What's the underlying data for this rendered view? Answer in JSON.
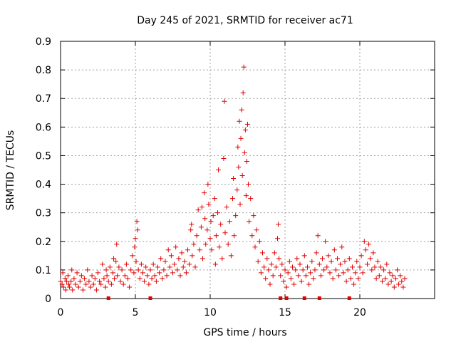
{
  "chart_data": {
    "type": "scatter",
    "title": "Day 245 of 2021, SRMTID for receiver ac71",
    "xlabel": "GPS time / hours",
    "ylabel": "SRMTID / TECUs",
    "xlim": [
      0,
      25
    ],
    "ylim": [
      0,
      0.9
    ],
    "x_ticks": [
      0,
      5,
      10,
      15,
      20
    ],
    "x_tick_labels": [
      "0",
      "5",
      "10",
      "15",
      "20"
    ],
    "y_ticks": [
      0,
      0.1,
      0.2,
      0.3,
      0.4,
      0.5,
      0.6,
      0.7,
      0.8,
      0.9
    ],
    "y_tick_labels": [
      "0",
      "0.1",
      "0.2",
      "0.3",
      "0.4",
      "0.5",
      "0.6",
      "0.7",
      "0.8",
      "0.9"
    ],
    "grid": true,
    "marker": "plus",
    "color": "#e00000",
    "series": [
      {
        "name": "SRMTID",
        "points": [
          [
            0.0,
            0.06
          ],
          [
            0.1,
            0.05
          ],
          [
            0.15,
            0.09
          ],
          [
            0.2,
            0.04
          ],
          [
            0.3,
            0.07
          ],
          [
            0.35,
            0.03
          ],
          [
            0.4,
            0.06
          ],
          [
            0.5,
            0.08
          ],
          [
            0.55,
            0.05
          ],
          [
            0.6,
            0.04
          ],
          [
            0.7,
            0.06
          ],
          [
            0.75,
            0.1
          ],
          [
            0.8,
            0.03
          ],
          [
            0.9,
            0.07
          ],
          [
            1.0,
            0.05
          ],
          [
            1.1,
            0.09
          ],
          [
            1.2,
            0.04
          ],
          [
            1.3,
            0.06
          ],
          [
            1.4,
            0.08
          ],
          [
            1.5,
            0.03
          ],
          [
            1.6,
            0.07
          ],
          [
            1.7,
            0.05
          ],
          [
            1.8,
            0.1
          ],
          [
            1.9,
            0.06
          ],
          [
            2.0,
            0.04
          ],
          [
            2.1,
            0.08
          ],
          [
            2.2,
            0.05
          ],
          [
            2.3,
            0.07
          ],
          [
            2.4,
            0.03
          ],
          [
            2.5,
            0.09
          ],
          [
            2.6,
            0.06
          ],
          [
            2.7,
            0.05
          ],
          [
            2.8,
            0.12
          ],
          [
            2.9,
            0.07
          ],
          [
            3.0,
            0.04
          ],
          [
            3.05,
            0.1
          ],
          [
            3.1,
            0.08
          ],
          [
            3.2,
            0.06
          ],
          [
            3.3,
            0.11
          ],
          [
            3.4,
            0.05
          ],
          [
            3.5,
            0.09
          ],
          [
            3.55,
            0.14
          ],
          [
            3.6,
            0.07
          ],
          [
            3.7,
            0.13
          ],
          [
            3.75,
            0.19
          ],
          [
            3.8,
            0.08
          ],
          [
            3.9,
            0.11
          ],
          [
            4.0,
            0.06
          ],
          [
            4.1,
            0.1
          ],
          [
            4.2,
            0.05
          ],
          [
            4.3,
            0.08
          ],
          [
            4.4,
            0.12
          ],
          [
            4.5,
            0.07
          ],
          [
            4.6,
            0.04
          ],
          [
            4.7,
            0.1
          ],
          [
            4.8,
            0.15
          ],
          [
            4.9,
            0.09
          ],
          [
            4.95,
            0.18
          ],
          [
            5.0,
            0.21
          ],
          [
            5.05,
            0.13
          ],
          [
            5.1,
            0.27
          ],
          [
            5.15,
            0.24
          ],
          [
            5.2,
            0.1
          ],
          [
            5.3,
            0.07
          ],
          [
            5.4,
            0.12
          ],
          [
            5.5,
            0.09
          ],
          [
            5.6,
            0.06
          ],
          [
            5.7,
            0.11
          ],
          [
            5.8,
            0.08
          ],
          [
            5.9,
            0.05
          ],
          [
            6.0,
            0.1
          ],
          [
            6.1,
            0.07
          ],
          [
            6.2,
            0.12
          ],
          [
            6.3,
            0.08
          ],
          [
            6.4,
            0.06
          ],
          [
            6.5,
            0.11
          ],
          [
            6.6,
            0.09
          ],
          [
            6.7,
            0.14
          ],
          [
            6.8,
            0.07
          ],
          [
            6.9,
            0.1
          ],
          [
            7.0,
            0.13
          ],
          [
            7.1,
            0.08
          ],
          [
            7.2,
            0.17
          ],
          [
            7.3,
            0.11
          ],
          [
            7.4,
            0.15
          ],
          [
            7.5,
            0.09
          ],
          [
            7.6,
            0.12
          ],
          [
            7.7,
            0.18
          ],
          [
            7.8,
            0.1
          ],
          [
            7.9,
            0.14
          ],
          [
            8.0,
            0.08
          ],
          [
            8.1,
            0.16
          ],
          [
            8.2,
            0.11
          ],
          [
            8.3,
            0.13
          ],
          [
            8.4,
            0.09
          ],
          [
            8.5,
            0.17
          ],
          [
            8.6,
            0.12
          ],
          [
            8.7,
            0.24
          ],
          [
            8.75,
            0.26
          ],
          [
            8.8,
            0.15
          ],
          [
            8.9,
            0.19
          ],
          [
            9.0,
            0.11
          ],
          [
            9.1,
            0.22
          ],
          [
            9.2,
            0.31
          ],
          [
            9.3,
            0.17
          ],
          [
            9.4,
            0.25
          ],
          [
            9.45,
            0.32
          ],
          [
            9.5,
            0.14
          ],
          [
            9.6,
            0.37
          ],
          [
            9.65,
            0.28
          ],
          [
            9.7,
            0.19
          ],
          [
            9.8,
            0.24
          ],
          [
            9.85,
            0.4
          ],
          [
            9.9,
            0.33
          ],
          [
            10.0,
            0.21
          ],
          [
            10.05,
            0.27
          ],
          [
            10.1,
            0.17
          ],
          [
            10.2,
            0.29
          ],
          [
            10.3,
            0.35
          ],
          [
            10.35,
            0.12
          ],
          [
            10.4,
            0.22
          ],
          [
            10.5,
            0.3
          ],
          [
            10.55,
            0.45
          ],
          [
            10.6,
            0.18
          ],
          [
            10.7,
            0.26
          ],
          [
            10.8,
            0.14
          ],
          [
            10.9,
            0.49
          ],
          [
            10.95,
            0.69
          ],
          [
            11.0,
            0.23
          ],
          [
            11.1,
            0.32
          ],
          [
            11.2,
            0.19
          ],
          [
            11.3,
            0.27
          ],
          [
            11.4,
            0.15
          ],
          [
            11.5,
            0.35
          ],
          [
            11.55,
            0.42
          ],
          [
            11.6,
            0.22
          ],
          [
            11.7,
            0.29
          ],
          [
            11.8,
            0.38
          ],
          [
            11.85,
            0.53
          ],
          [
            11.9,
            0.46
          ],
          [
            11.95,
            0.62
          ],
          [
            12.0,
            0.33
          ],
          [
            12.05,
            0.56
          ],
          [
            12.1,
            0.66
          ],
          [
            12.15,
            0.43
          ],
          [
            12.2,
            0.72
          ],
          [
            12.25,
            0.81
          ],
          [
            12.3,
            0.51
          ],
          [
            12.35,
            0.59
          ],
          [
            12.4,
            0.36
          ],
          [
            12.45,
            0.48
          ],
          [
            12.5,
            0.61
          ],
          [
            12.55,
            0.4
          ],
          [
            12.6,
            0.27
          ],
          [
            12.7,
            0.35
          ],
          [
            12.8,
            0.22
          ],
          [
            12.9,
            0.29
          ],
          [
            13.0,
            0.18
          ],
          [
            13.1,
            0.24
          ],
          [
            13.2,
            0.13
          ],
          [
            13.3,
            0.2
          ],
          [
            13.4,
            0.09
          ],
          [
            13.5,
            0.16
          ],
          [
            13.6,
            0.11
          ],
          [
            13.7,
            0.07
          ],
          [
            13.8,
            0.14
          ],
          [
            13.9,
            0.1
          ],
          [
            14.0,
            0.05
          ],
          [
            14.1,
            0.12
          ],
          [
            14.2,
            0.08
          ],
          [
            14.3,
            0.16
          ],
          [
            14.4,
            0.11
          ],
          [
            14.5,
            0.21
          ],
          [
            14.55,
            0.26
          ],
          [
            14.6,
            0.14
          ],
          [
            14.7,
            0.08
          ],
          [
            14.8,
            0.12
          ],
          [
            14.9,
            0.06
          ],
          [
            15.0,
            0.1
          ],
          [
            15.1,
            0.04
          ],
          [
            15.2,
            0.09
          ],
          [
            15.3,
            0.13
          ],
          [
            15.4,
            0.07
          ],
          [
            15.5,
            0.11
          ],
          [
            15.6,
            0.05
          ],
          [
            15.7,
            0.1
          ],
          [
            15.8,
            0.14
          ],
          [
            15.9,
            0.08
          ],
          [
            16.0,
            0.12
          ],
          [
            16.1,
            0.06
          ],
          [
            16.2,
            0.1
          ],
          [
            16.3,
            0.15
          ],
          [
            16.4,
            0.08
          ],
          [
            16.5,
            0.11
          ],
          [
            16.6,
            0.05
          ],
          [
            16.7,
            0.09
          ],
          [
            16.8,
            0.13
          ],
          [
            16.9,
            0.07
          ],
          [
            17.0,
            0.1
          ],
          [
            17.1,
            0.16
          ],
          [
            17.2,
            0.22
          ],
          [
            17.3,
            0.12
          ],
          [
            17.4,
            0.08
          ],
          [
            17.5,
            0.14
          ],
          [
            17.6,
            0.1
          ],
          [
            17.7,
            0.2
          ],
          [
            17.8,
            0.11
          ],
          [
            17.9,
            0.15
          ],
          [
            18.0,
            0.09
          ],
          [
            18.1,
            0.13
          ],
          [
            18.2,
            0.07
          ],
          [
            18.3,
            0.17
          ],
          [
            18.4,
            0.1
          ],
          [
            18.5,
            0.14
          ],
          [
            18.6,
            0.08
          ],
          [
            18.7,
            0.12
          ],
          [
            18.8,
            0.18
          ],
          [
            18.9,
            0.09
          ],
          [
            19.0,
            0.13
          ],
          [
            19.1,
            0.06
          ],
          [
            19.2,
            0.1
          ],
          [
            19.3,
            0.14
          ],
          [
            19.4,
            0.07
          ],
          [
            19.5,
            0.11
          ],
          [
            19.6,
            0.05
          ],
          [
            19.7,
            0.09
          ],
          [
            19.8,
            0.13
          ],
          [
            19.9,
            0.07
          ],
          [
            20.0,
            0.11
          ],
          [
            20.1,
            0.15
          ],
          [
            20.2,
            0.09
          ],
          [
            20.3,
            0.2
          ],
          [
            20.4,
            0.17
          ],
          [
            20.5,
            0.12
          ],
          [
            20.6,
            0.19
          ],
          [
            20.7,
            0.14
          ],
          [
            20.8,
            0.1
          ],
          [
            20.9,
            0.16
          ],
          [
            21.0,
            0.11
          ],
          [
            21.1,
            0.07
          ],
          [
            21.2,
            0.13
          ],
          [
            21.3,
            0.08
          ],
          [
            21.4,
            0.11
          ],
          [
            21.5,
            0.06
          ],
          [
            21.6,
            0.1
          ],
          [
            21.7,
            0.07
          ],
          [
            21.8,
            0.12
          ],
          [
            21.9,
            0.05
          ],
          [
            22.0,
            0.09
          ],
          [
            22.1,
            0.06
          ],
          [
            22.2,
            0.08
          ],
          [
            22.3,
            0.04
          ],
          [
            22.4,
            0.07
          ],
          [
            22.5,
            0.1
          ],
          [
            22.6,
            0.05
          ],
          [
            22.7,
            0.08
          ],
          [
            22.8,
            0.06
          ],
          [
            22.9,
            0.04
          ],
          [
            23.0,
            0.07
          ]
        ]
      }
    ],
    "gap_markers_x": [
      3.2,
      6.0,
      14.7,
      15.1,
      16.3,
      17.3,
      19.3
    ]
  }
}
